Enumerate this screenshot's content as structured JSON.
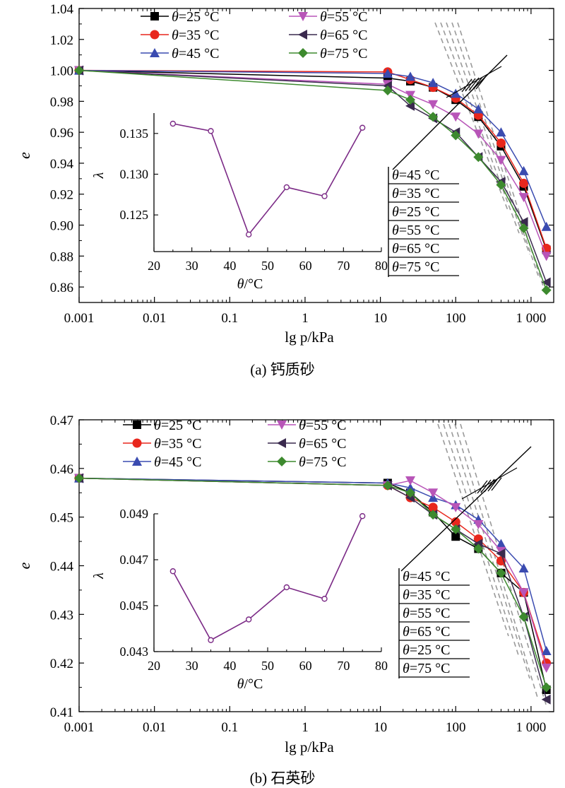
{
  "chart_data": [
    {
      "type": "line",
      "caption": "(a) 钙质砂",
      "xlabel": "lg p/kPa",
      "ylabel": "e",
      "xscale": "log",
      "xlim": [
        0.001,
        2000
      ],
      "ylim": [
        0.85,
        1.04
      ],
      "x_ticks": [
        "0.001",
        "0.01",
        "0.1",
        "1",
        "10",
        "100",
        "1 000"
      ],
      "y_ticks": [
        "0.86",
        "0.88",
        "0.90",
        "0.92",
        "0.94",
        "0.96",
        "0.98",
        "1.00",
        "1.02",
        "1.04"
      ],
      "legend_position": "top",
      "x": [
        0.001,
        12.5,
        25,
        50,
        100,
        200,
        400,
        800,
        1600
      ],
      "series": [
        {
          "name": "θ=25 °C",
          "color": "#000000",
          "marker": "square",
          "values": [
            1.0,
            0.995,
            0.993,
            0.989,
            0.981,
            0.97,
            0.951,
            0.925,
            0.884
          ]
        },
        {
          "name": "θ=35 °C",
          "color": "#e8271d",
          "marker": "circle",
          "values": [
            1.0,
            0.999,
            0.994,
            0.989,
            0.982,
            0.971,
            0.953,
            0.927,
            0.885
          ]
        },
        {
          "name": "θ=45 °C",
          "color": "#3a4bb0",
          "marker": "triangle-up",
          "values": [
            1.0,
            0.998,
            0.996,
            0.992,
            0.985,
            0.975,
            0.96,
            0.935,
            0.899
          ]
        },
        {
          "name": "θ=55 °C",
          "color": "#b855b8",
          "marker": "triangle-down",
          "values": [
            1.0,
            0.991,
            0.984,
            0.978,
            0.97,
            0.959,
            0.942,
            0.918,
            0.88
          ]
        },
        {
          "name": "θ=65 °C",
          "color": "#3a2a4e",
          "marker": "triangle-left",
          "values": [
            1.0,
            0.99,
            0.977,
            0.969,
            0.96,
            0.944,
            0.928,
            0.902,
            0.863
          ]
        },
        {
          "name": "θ=75 °C",
          "color": "#3d8a2e",
          "marker": "diamond",
          "values": [
            1.0,
            0.987,
            0.981,
            0.97,
            0.958,
            0.944,
            0.926,
            0.898,
            0.858
          ]
        }
      ],
      "annotation_order": [
        "θ=45 °C",
        "θ=35 °C",
        "θ=25 °C",
        "θ=55 °C",
        "θ=65 °C",
        "θ=75 °C"
      ],
      "inset": {
        "type": "line",
        "xlabel": "θ/°C",
        "ylabel": "λ",
        "xlim": [
          20,
          80
        ],
        "ylim": [
          0.1205,
          0.1375
        ],
        "x_ticks": [
          "20",
          "30",
          "40",
          "50",
          "60",
          "70",
          "80"
        ],
        "y_ticks": [
          "0.125",
          "0.130",
          "0.135"
        ],
        "color": "#7b2a86",
        "x": [
          25,
          35,
          45,
          55,
          65,
          75
        ],
        "values": [
          0.1362,
          0.1353,
          0.1226,
          0.1284,
          0.1273,
          0.1357
        ]
      }
    },
    {
      "type": "line",
      "caption": "(b) 石英砂",
      "xlabel": "lg p/kPa",
      "ylabel": "e",
      "xscale": "log",
      "xlim": [
        0.001,
        2000
      ],
      "ylim": [
        0.41,
        0.47
      ],
      "x_ticks": [
        "0.001",
        "0.01",
        "0.1",
        "1",
        "10",
        "100",
        "1 000"
      ],
      "y_ticks": [
        "0.41",
        "0.42",
        "0.43",
        "0.44",
        "0.45",
        "0.46",
        "0.47"
      ],
      "legend_position": "top",
      "x": [
        0.001,
        12.5,
        25,
        50,
        100,
        200,
        400,
        800,
        1600
      ],
      "series": [
        {
          "name": "θ=25 °C",
          "color": "#000000",
          "marker": "square",
          "values": [
            0.458,
            0.457,
            0.455,
            0.451,
            0.446,
            0.4435,
            0.4385,
            0.4345,
            0.4145
          ]
        },
        {
          "name": "θ=35 °C",
          "color": "#e8271d",
          "marker": "circle",
          "values": [
            0.458,
            0.4565,
            0.454,
            0.452,
            0.449,
            0.4455,
            0.441,
            0.4345,
            0.42
          ]
        },
        {
          "name": "θ=45 °C",
          "color": "#3a4bb0",
          "marker": "triangle-up",
          "values": [
            0.458,
            0.457,
            0.456,
            0.454,
            0.4525,
            0.4495,
            0.4445,
            0.4395,
            0.4225
          ]
        },
        {
          "name": "θ=55 °C",
          "color": "#b855b8",
          "marker": "triangle-down",
          "values": [
            0.458,
            0.4565,
            0.4575,
            0.455,
            0.452,
            0.4485,
            0.443,
            0.4345,
            0.419
          ]
        },
        {
          "name": "θ=65 °C",
          "color": "#3a2a4e",
          "marker": "triangle-left",
          "values": [
            0.458,
            0.4565,
            0.454,
            0.4505,
            0.4475,
            0.4445,
            0.4425,
            0.4295,
            0.4125
          ]
        },
        {
          "name": "θ=75 °C",
          "color": "#3d8a2e",
          "marker": "diamond",
          "values": [
            0.458,
            0.4565,
            0.455,
            0.4505,
            0.4475,
            0.4435,
            0.4385,
            0.4295,
            0.415
          ]
        }
      ],
      "annotation_order": [
        "θ=45 °C",
        "θ=35 °C",
        "θ=55 °C",
        "θ=65 °C",
        "θ=25 °C",
        "θ=75 °C"
      ],
      "inset": {
        "type": "line",
        "xlabel": "θ/°C",
        "ylabel": "λ",
        "xlim": [
          20,
          80
        ],
        "ylim": [
          0.043,
          0.049
        ],
        "x_ticks": [
          "20",
          "30",
          "40",
          "50",
          "60",
          "70",
          "80"
        ],
        "y_ticks": [
          "0.043",
          "0.045",
          "0.047",
          "0.049"
        ],
        "color": "#7b2a86",
        "x": [
          25,
          35,
          45,
          55,
          65,
          75
        ],
        "values": [
          0.0465,
          0.0435,
          0.0444,
          0.0458,
          0.0453,
          0.0489
        ]
      }
    }
  ]
}
